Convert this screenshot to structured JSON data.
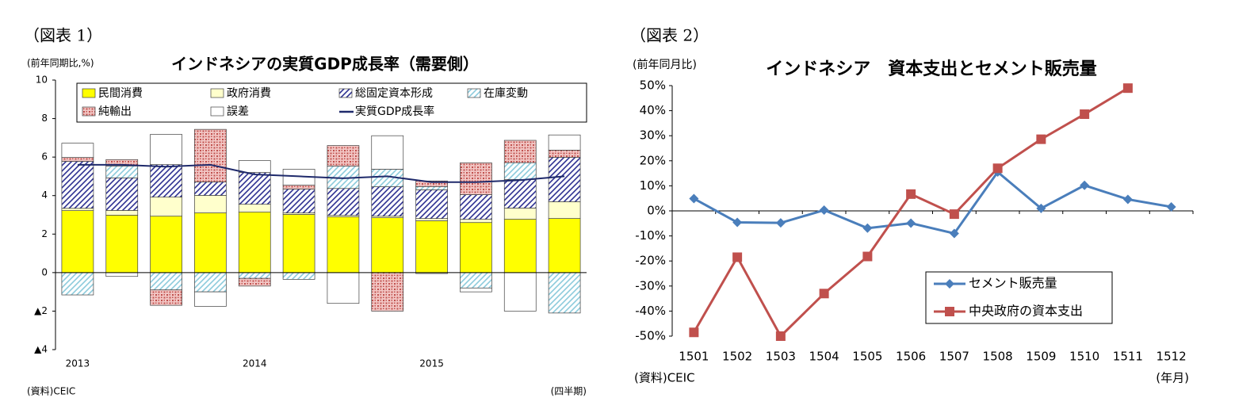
{
  "chart_data": [
    {
      "type": "bar",
      "header": "（図表 1）",
      "title": "インドネシアの実質GDP成長率（需要側）",
      "y_label": "(前年同期比,%)",
      "x_label": "(四半期)",
      "source": "(資料)CEIC",
      "categories": [
        "2013",
        null,
        null,
        null,
        "2014",
        null,
        null,
        null,
        "2015",
        null,
        null,
        null
      ],
      "ylim": [
        -4,
        10
      ],
      "yticks": [
        {
          "value": -4,
          "label": "▲4"
        },
        {
          "value": -2,
          "label": "▲2"
        },
        0,
        2,
        4,
        6,
        8,
        10
      ],
      "series": [
        {
          "name": "民間消費",
          "color": "#ffff00",
          "values": [
            3.22,
            2.98,
            2.93,
            3.1,
            3.14,
            3.02,
            2.89,
            2.85,
            2.69,
            2.6,
            2.77,
            2.81
          ]
        },
        {
          "name": "政府消費",
          "color": "#ffffcc",
          "values": [
            0.12,
            0.25,
            0.99,
            0.91,
            0.41,
            0.08,
            0.08,
            0.08,
            0.12,
            0.17,
            0.58,
            0.87
          ]
        },
        {
          "name": "総固定資本形成",
          "color": "#2e3192",
          "hatch": "diagonal",
          "values": [
            2.44,
            1.69,
            1.69,
            0.7,
            1.65,
            1.24,
            1.4,
            1.53,
            1.49,
            1.28,
            1.49,
            2.31
          ]
        },
        {
          "name": "在庫変動",
          "color": "#8ccbdc",
          "hatch": "diagonal",
          "values": [
            -1.16,
            0.62,
            -0.9,
            -1.0,
            -0.3,
            -0.35,
            1.16,
            0.91,
            0.17,
            -0.8,
            0.87,
            -2.1
          ]
        },
        {
          "name": "純輸出",
          "color": "#c0504d",
          "hatch": "check",
          "values": [
            0.2,
            0.33,
            -0.8,
            2.73,
            -0.4,
            0.2,
            1.07,
            -2.0,
            0.29,
            1.65,
            1.16,
            0.37
          ]
        },
        {
          "name": "誤差",
          "color": "#ffffff",
          "values": [
            0.74,
            -0.2,
            1.57,
            -0.75,
            0.62,
            0.83,
            -1.6,
            1.74,
            -0.05,
            -0.2,
            -2.0,
            0.79
          ]
        },
        {
          "name": "実質GDP成長率",
          "type": "line",
          "color": "#1f2a6b",
          "values": [
            5.6,
            5.6,
            5.5,
            5.6,
            5.1,
            5.0,
            4.9,
            5.0,
            4.7,
            4.7,
            4.8,
            5.0
          ]
        }
      ]
    },
    {
      "type": "line",
      "header": "（図表 2）",
      "title": "インドネシア　資本支出とセメント販売量",
      "y_label": "(前年同月比)",
      "x_label": "(年月)",
      "source": "(資料)CEIC",
      "categories": [
        "1501",
        "1502",
        "1503",
        "1504",
        "1505",
        "1506",
        "1507",
        "1508",
        "1509",
        "1510",
        "1511",
        "1512"
      ],
      "ylim": [
        -50,
        50
      ],
      "yticks": [
        {
          "value": -50,
          "label": "-50%"
        },
        {
          "value": -40,
          "label": "-40%"
        },
        {
          "value": -30,
          "label": "-30%"
        },
        {
          "value": -20,
          "label": "-20%"
        },
        {
          "value": -10,
          "label": "-10%"
        },
        {
          "value": 0,
          "label": "0%"
        },
        {
          "value": 10,
          "label": "10%"
        },
        {
          "value": 20,
          "label": "20%"
        },
        {
          "value": 30,
          "label": "30%"
        },
        {
          "value": 40,
          "label": "40%"
        },
        {
          "value": 50,
          "label": "50%"
        }
      ],
      "series": [
        {
          "name": "セメント販売量",
          "color": "#4a7ebb",
          "marker": "diamond",
          "values": [
            4.9,
            -4.6,
            -4.8,
            0.3,
            -6.9,
            -4.9,
            -9.0,
            15.5,
            1.0,
            10.2,
            4.6,
            1.6
          ]
        },
        {
          "name": "中央政府の資本支出",
          "color": "#c0504d",
          "marker": "square",
          "values": [
            -48.5,
            -18.5,
            -50.0,
            -33.0,
            -18.2,
            6.7,
            -1.3,
            17.0,
            28.6,
            38.6,
            49.0,
            null
          ]
        }
      ]
    }
  ]
}
